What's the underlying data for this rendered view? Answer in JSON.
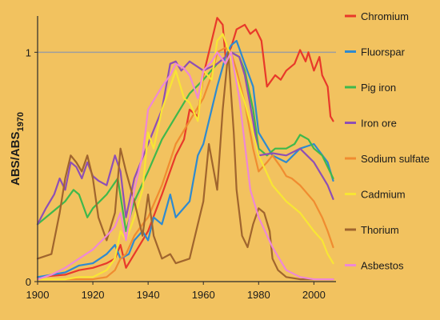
{
  "colors": {
    "background": "#f2c25f",
    "axis": "#2b2b2b",
    "reference_line": "#9e9e9e"
  },
  "chart_data": {
    "type": "line",
    "ylabel": "ABS/ABS",
    "ylabel_subscript": "1970",
    "x_ticks": [
      "1900",
      "1920",
      "1940",
      "1960",
      "1980",
      "2000"
    ],
    "y_ticks": [
      "0",
      "1"
    ],
    "xlim": [
      1900,
      2008
    ],
    "ylim": [
      0,
      1.2
    ],
    "reference_line_y": 1,
    "legend_position": "right",
    "series": [
      {
        "name": "Chromium",
        "color": "#e8392a",
        "x": [
          1900,
          1910,
          1915,
          1920,
          1925,
          1928,
          1930,
          1932,
          1935,
          1940,
          1945,
          1950,
          1953,
          1955,
          1958,
          1960,
          1963,
          1965,
          1967,
          1968,
          1970,
          1972,
          1975,
          1977,
          1979,
          1981,
          1983,
          1986,
          1988,
          1990,
          1993,
          1995,
          1997,
          1998,
          2000,
          2002,
          2003,
          2005,
          2006,
          2007
        ],
        "y": [
          0.02,
          0.03,
          0.05,
          0.06,
          0.08,
          0.1,
          0.16,
          0.06,
          0.12,
          0.22,
          0.38,
          0.55,
          0.62,
          0.75,
          0.72,
          0.9,
          1.05,
          1.15,
          1.12,
          0.98,
          1.02,
          1.1,
          1.12,
          1.08,
          1.1,
          1.05,
          0.85,
          0.9,
          0.88,
          0.92,
          0.95,
          1.01,
          0.96,
          1.0,
          0.92,
          0.98,
          0.9,
          0.85,
          0.72,
          0.7
        ]
      },
      {
        "name": "Fluorspar",
        "color": "#2e8ad0",
        "x": [
          1900,
          1905,
          1910,
          1915,
          1920,
          1925,
          1928,
          1930,
          1933,
          1935,
          1938,
          1940,
          1942,
          1945,
          1948,
          1950,
          1955,
          1958,
          1960,
          1962,
          1965,
          1968,
          1970,
          1972,
          1975,
          1978,
          1980,
          1985,
          1990,
          1995,
          2000,
          2005,
          2007
        ],
        "y": [
          0.02,
          0.03,
          0.04,
          0.07,
          0.08,
          0.12,
          0.16,
          0.1,
          0.12,
          0.18,
          0.22,
          0.18,
          0.28,
          0.25,
          0.38,
          0.28,
          0.35,
          0.55,
          0.6,
          0.7,
          0.85,
          0.98,
          1.03,
          1.05,
          0.95,
          0.85,
          0.65,
          0.55,
          0.52,
          0.58,
          0.6,
          0.52,
          0.44
        ]
      },
      {
        "name": "Pig iron",
        "color": "#3fb84c",
        "x": [
          1900,
          1905,
          1910,
          1913,
          1915,
          1918,
          1920,
          1925,
          1929,
          1932,
          1935,
          1940,
          1945,
          1950,
          1955,
          1960,
          1965,
          1970,
          1973,
          1975,
          1978,
          1980,
          1983,
          1986,
          1990,
          1993,
          1995,
          1998,
          2000,
          2003,
          2005,
          2007
        ],
        "y": [
          0.25,
          0.3,
          0.35,
          0.4,
          0.38,
          0.28,
          0.32,
          0.38,
          0.45,
          0.22,
          0.35,
          0.48,
          0.62,
          0.72,
          0.82,
          0.88,
          0.95,
          1.0,
          0.98,
          0.92,
          0.75,
          0.58,
          0.55,
          0.58,
          0.58,
          0.6,
          0.64,
          0.62,
          0.58,
          0.55,
          0.5,
          0.45
        ]
      },
      {
        "name": "Iron ore",
        "color": "#8e4fb5",
        "x": [
          1900,
          1903,
          1906,
          1908,
          1910,
          1912,
          1914,
          1916,
          1918,
          1920,
          1922,
          1925,
          1928,
          1930,
          1932,
          1935,
          1940,
          1945,
          1948,
          1950,
          1952,
          1955,
          1960,
          1965,
          1970,
          1973,
          1975,
          1978,
          1980,
          1985,
          1990,
          1995,
          2000,
          2003,
          2005,
          2007
        ],
        "y": [
          0.25,
          0.32,
          0.38,
          0.45,
          0.4,
          0.52,
          0.5,
          0.45,
          0.52,
          0.46,
          0.44,
          0.42,
          0.55,
          0.48,
          0.28,
          0.45,
          0.6,
          0.75,
          0.95,
          0.96,
          0.92,
          0.96,
          0.92,
          0.95,
          1.0,
          0.98,
          0.9,
          0.7,
          0.55,
          0.56,
          0.55,
          0.58,
          0.52,
          0.46,
          0.42,
          0.36
        ]
      },
      {
        "name": "Sodium sulfate",
        "color": "#f08c30",
        "x": [
          1900,
          1920,
          1925,
          1928,
          1930,
          1932,
          1935,
          1938,
          1940,
          1945,
          1950,
          1955,
          1960,
          1963,
          1965,
          1968,
          1970,
          1972,
          1975,
          1978,
          1980,
          1983,
          1985,
          1988,
          1990,
          1992,
          1995,
          2000,
          2003,
          2005,
          2007
        ],
        "y": [
          0.01,
          0.01,
          0.02,
          0.05,
          0.1,
          0.12,
          0.2,
          0.25,
          0.28,
          0.42,
          0.6,
          0.7,
          0.8,
          0.9,
          1.0,
          1.02,
          1.0,
          0.92,
          0.78,
          0.58,
          0.48,
          0.52,
          0.55,
          0.5,
          0.46,
          0.45,
          0.42,
          0.35,
          0.28,
          0.22,
          0.15
        ]
      },
      {
        "name": "Cadmium",
        "color": "#f8e634",
        "x": [
          1900,
          1910,
          1915,
          1920,
          1925,
          1928,
          1930,
          1932,
          1935,
          1938,
          1940,
          1942,
          1945,
          1948,
          1950,
          1953,
          1955,
          1958,
          1960,
          1963,
          1965,
          1967,
          1970,
          1973,
          1975,
          1978,
          1980,
          1985,
          1990,
          1995,
          2000,
          2003,
          2005,
          2007
        ],
        "y": [
          0.01,
          0.01,
          0.02,
          0.02,
          0.05,
          0.1,
          0.22,
          0.18,
          0.28,
          0.4,
          0.65,
          0.58,
          0.75,
          0.85,
          0.92,
          0.8,
          0.78,
          0.7,
          0.92,
          0.88,
          1.05,
          1.08,
          0.98,
          0.85,
          0.78,
          0.65,
          0.55,
          0.42,
          0.35,
          0.3,
          0.22,
          0.18,
          0.12,
          0.08
        ]
      },
      {
        "name": "Thorium",
        "color": "#a0652e",
        "x": [
          1900,
          1905,
          1908,
          1910,
          1912,
          1914,
          1916,
          1918,
          1920,
          1922,
          1925,
          1928,
          1930,
          1932,
          1935,
          1938,
          1940,
          1942,
          1945,
          1948,
          1950,
          1955,
          1958,
          1960,
          1962,
          1965,
          1967,
          1969,
          1971,
          1972,
          1974,
          1976,
          1978,
          1980,
          1982,
          1984,
          1985,
          1987,
          1990,
          1995,
          2000,
          2005,
          2007
        ],
        "y": [
          0.1,
          0.12,
          0.3,
          0.45,
          0.55,
          0.52,
          0.48,
          0.55,
          0.45,
          0.28,
          0.18,
          0.3,
          0.58,
          0.48,
          0.35,
          0.2,
          0.38,
          0.2,
          0.1,
          0.12,
          0.08,
          0.1,
          0.25,
          0.35,
          0.6,
          0.4,
          0.75,
          1.0,
          0.65,
          0.4,
          0.2,
          0.15,
          0.25,
          0.32,
          0.3,
          0.22,
          0.1,
          0.05,
          0.02,
          0.01,
          0.01,
          0.01,
          0.01
        ]
      },
      {
        "name": "Asbestos",
        "color": "#ee88d6",
        "x": [
          1900,
          1905,
          1910,
          1915,
          1920,
          1925,
          1928,
          1930,
          1932,
          1935,
          1938,
          1940,
          1945,
          1948,
          1950,
          1953,
          1955,
          1958,
          1960,
          1963,
          1965,
          1968,
          1970,
          1973,
          1975,
          1977,
          1980,
          1985,
          1990,
          1995,
          2000,
          2005,
          2007
        ],
        "y": [
          0.01,
          0.03,
          0.06,
          0.1,
          0.14,
          0.2,
          0.24,
          0.3,
          0.18,
          0.4,
          0.55,
          0.75,
          0.85,
          0.9,
          0.95,
          0.93,
          0.9,
          0.8,
          0.92,
          0.96,
          1.0,
          0.95,
          1.0,
          0.8,
          0.6,
          0.4,
          0.28,
          0.15,
          0.05,
          0.02,
          0.01,
          0.01,
          0.01
        ]
      }
    ]
  }
}
